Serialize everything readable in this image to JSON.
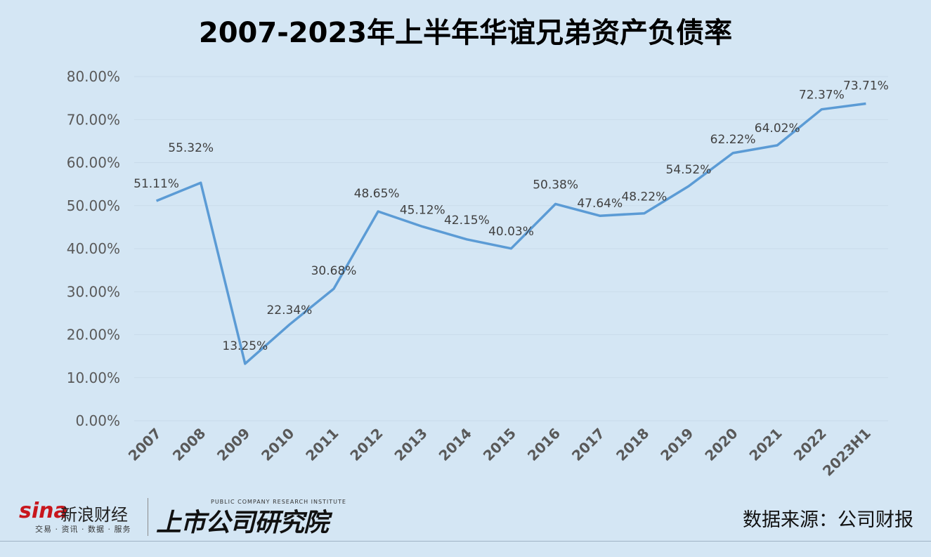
{
  "chart_data": {
    "type": "line",
    "title": "2007-2023年上半年华谊兄弟资产负债率",
    "categories": [
      "2007",
      "2008",
      "2009",
      "2010",
      "2011",
      "2012",
      "2013",
      "2014",
      "2015",
      "2016",
      "2017",
      "2018",
      "2019",
      "2020",
      "2021",
      "2022",
      "2023H1"
    ],
    "series": [
      {
        "values": [
          51.11,
          55.32,
          13.25,
          22.34,
          30.68,
          48.65,
          45.12,
          42.15,
          40.03,
          50.38,
          47.64,
          48.22,
          54.52,
          62.22,
          64.02,
          72.37,
          73.71
        ],
        "labels": [
          "51.11%",
          "55.32%",
          "13.25%",
          "22.34%",
          "30.68%",
          "48.65%",
          "45.12%",
          "42.15%",
          "40.03%",
          "50.38%",
          "47.64%",
          "48.22%",
          "54.52%",
          "62.22%",
          "64.02%",
          "72.37%",
          "73.71%"
        ],
        "color": "#5b9bd5"
      }
    ],
    "y_ticks": [
      "0.00%",
      "10.00%",
      "20.00%",
      "30.00%",
      "40.00%",
      "50.00%",
      "60.00%",
      "70.00%",
      "80.00%"
    ],
    "ylim": [
      0,
      80
    ],
    "grid": true,
    "legend": "none"
  },
  "footer": {
    "sina_logo_text": "sina",
    "sina_brand": "新浪财经",
    "sina_tagline": "交易 · 资讯 · 数据 · 服务",
    "institute_name": "上市公司研究院",
    "institute_en": "PUBLIC COMPANY RESEARCH INSTITUTE",
    "source": "数据来源：公司财报"
  },
  "colors": {
    "background": "#d4e6f4",
    "line": "#5b9bd5",
    "grid": "#c9dbea",
    "sina_red": "#c8161d"
  }
}
